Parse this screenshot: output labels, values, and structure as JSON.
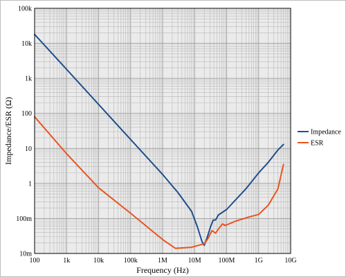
{
  "chart_data": {
    "type": "line",
    "xlabel": "Frequency (Hz)",
    "ylabel": "Impedance/ESR (Ω)",
    "x_scale": "log",
    "y_scale": "log",
    "xlim": [
      100,
      10000000000
    ],
    "ylim": [
      0.01,
      100000
    ],
    "grid": true,
    "legend_position": "right",
    "x_ticks": [
      {
        "value": 100,
        "label": "100"
      },
      {
        "value": 1000,
        "label": "1k"
      },
      {
        "value": 10000,
        "label": "10k"
      },
      {
        "value": 100000,
        "label": "100k"
      },
      {
        "value": 1000000,
        "label": "1M"
      },
      {
        "value": 10000000,
        "label": "10M"
      },
      {
        "value": 100000000,
        "label": "100M"
      },
      {
        "value": 1000000000,
        "label": "1G"
      },
      {
        "value": 10000000000,
        "label": "10G"
      }
    ],
    "y_ticks": [
      {
        "value": 0.01,
        "label": "10m"
      },
      {
        "value": 0.1,
        "label": "100m"
      },
      {
        "value": 1,
        "label": "1"
      },
      {
        "value": 10,
        "label": "10"
      },
      {
        "value": 100,
        "label": "100"
      },
      {
        "value": 1000,
        "label": "1k"
      },
      {
        "value": 10000,
        "label": "10k"
      },
      {
        "value": 100000,
        "label": "100k"
      }
    ],
    "series": [
      {
        "name": "Impedance",
        "color": "#1f4e8c",
        "points": [
          [
            100,
            18000
          ],
          [
            1000,
            1800
          ],
          [
            10000,
            180
          ],
          [
            100000,
            18
          ],
          [
            1000000,
            1.8
          ],
          [
            3000000,
            0.55
          ],
          [
            8000000,
            0.16
          ],
          [
            12000000,
            0.06
          ],
          [
            17000000,
            0.022
          ],
          [
            20000000,
            0.017
          ],
          [
            25000000,
            0.03
          ],
          [
            32000000,
            0.06
          ],
          [
            38000000,
            0.09
          ],
          [
            45000000,
            0.09
          ],
          [
            55000000,
            0.125
          ],
          [
            100000000,
            0.18
          ],
          [
            400000000,
            0.7
          ],
          [
            1000000000,
            2
          ],
          [
            2000000000,
            4
          ],
          [
            4000000000,
            9
          ],
          [
            6000000000,
            13
          ]
        ]
      },
      {
        "name": "ESR",
        "color": "#e8531e",
        "points": [
          [
            100,
            80
          ],
          [
            1000,
            7
          ],
          [
            10000,
            0.75
          ],
          [
            100000,
            0.14
          ],
          [
            1000000,
            0.025
          ],
          [
            2500000,
            0.014
          ],
          [
            8000000,
            0.015
          ],
          [
            20000000,
            0.019
          ],
          [
            25000000,
            0.025
          ],
          [
            35000000,
            0.045
          ],
          [
            45000000,
            0.038
          ],
          [
            60000000,
            0.055
          ],
          [
            75000000,
            0.07
          ],
          [
            90000000,
            0.063
          ],
          [
            200000000,
            0.085
          ],
          [
            500000000,
            0.11
          ],
          [
            1000000000,
            0.13
          ],
          [
            2000000000,
            0.24
          ],
          [
            4000000000,
            0.7
          ],
          [
            6000000000,
            3.5
          ]
        ]
      }
    ]
  }
}
